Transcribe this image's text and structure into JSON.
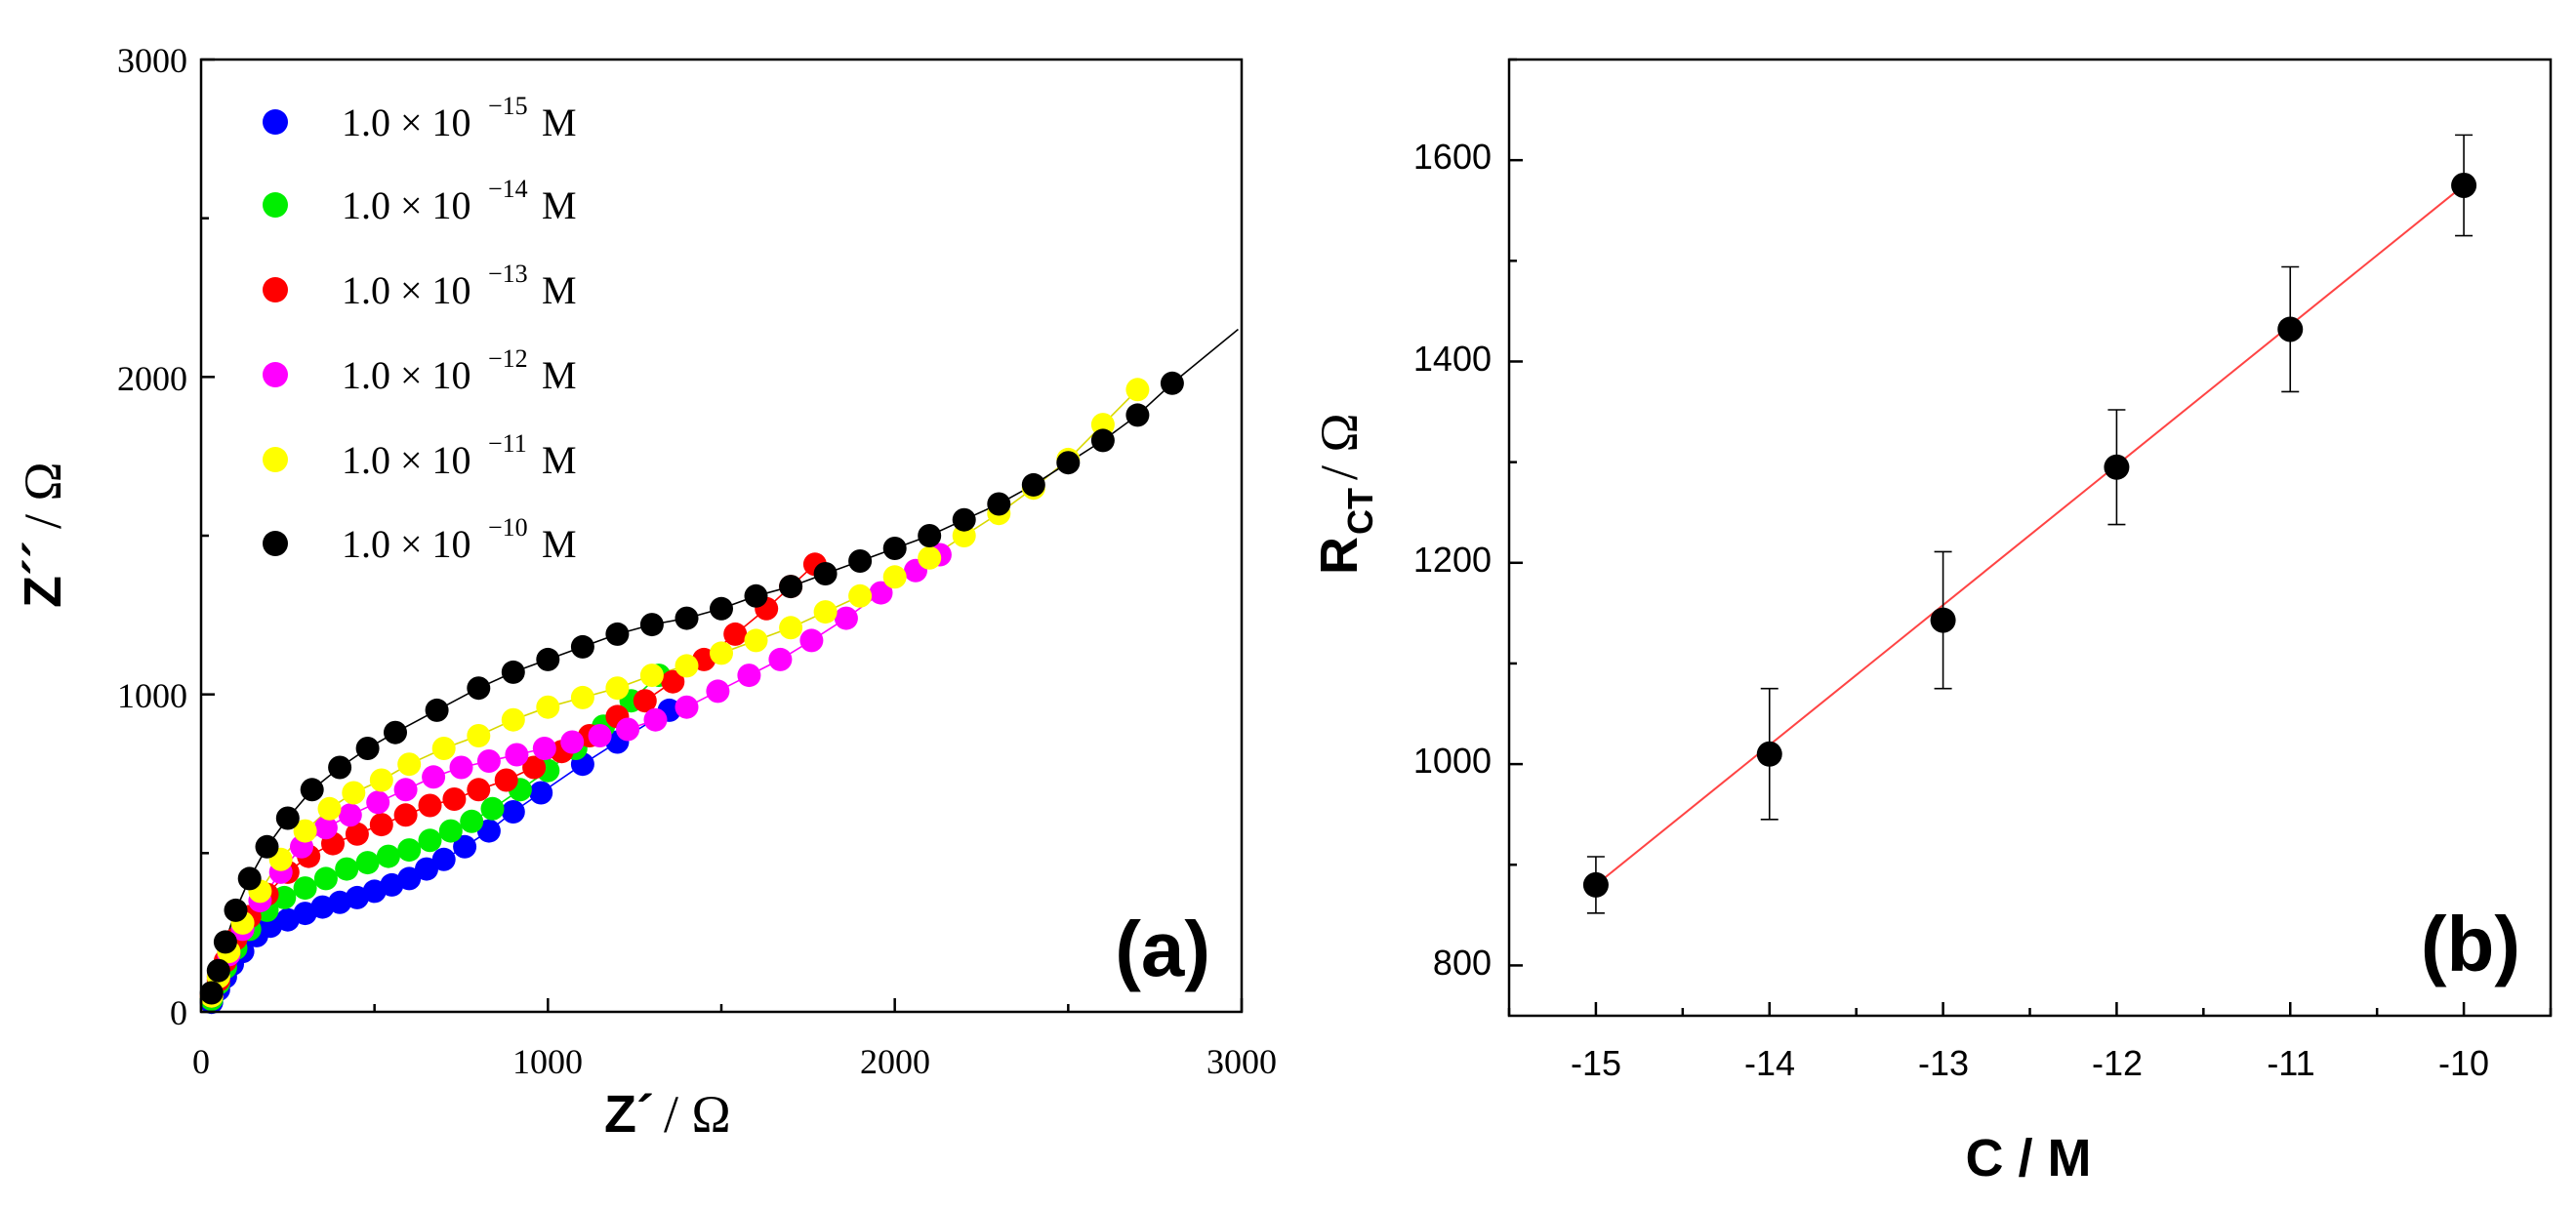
{
  "chart_data": [
    {
      "panel_label": "(a)",
      "type": "scatter",
      "xlabel_main": "Z´",
      "xlabel_unit": "/ Ω",
      "ylabel_main": "Z´´",
      "ylabel_unit": "/ Ω",
      "xlim": [
        0,
        3000
      ],
      "ylim": [
        0,
        3000
      ],
      "xticks": [
        "0",
        "1000",
        "2000",
        "3000"
      ],
      "yticks": [
        "0",
        "1000",
        "2000",
        "3000"
      ],
      "legend_position": "top-left",
      "series": [
        {
          "name": "1.0 × 10^-15 M",
          "mantissa": "1.0 × 10",
          "exponent": "−15",
          "unit": "M",
          "color": "#0000ff",
          "x": [
            30,
            50,
            70,
            90,
            120,
            160,
            200,
            250,
            300,
            350,
            400,
            450,
            500,
            550,
            600,
            650,
            700,
            760,
            830,
            900,
            980,
            1100,
            1200,
            1350
          ],
          "y": [
            30,
            70,
            110,
            150,
            190,
            240,
            270,
            290,
            310,
            330,
            345,
            360,
            380,
            400,
            420,
            450,
            480,
            520,
            570,
            630,
            690,
            780,
            850,
            950
          ]
        },
        {
          "name": "1.0 × 10^-14 M",
          "mantissa": "1.0 × 10",
          "exponent": "−14",
          "unit": "M",
          "color": "#00ee00",
          "x": [
            30,
            50,
            70,
            100,
            140,
            190,
            240,
            300,
            360,
            420,
            480,
            540,
            600,
            660,
            720,
            780,
            840,
            920,
            1000,
            1080,
            1160,
            1240,
            1320
          ],
          "y": [
            40,
            90,
            140,
            200,
            260,
            320,
            360,
            390,
            420,
            450,
            470,
            490,
            510,
            540,
            570,
            600,
            640,
            700,
            760,
            830,
            900,
            980,
            1060
          ]
        },
        {
          "name": "1.0 × 10^-13 M",
          "mantissa": "1.0 × 10",
          "exponent": "−13",
          "unit": "M",
          "color": "#ff0000",
          "x": [
            30,
            50,
            70,
            100,
            140,
            190,
            250,
            310,
            380,
            450,
            520,
            590,
            660,
            730,
            800,
            880,
            960,
            1040,
            1120,
            1200,
            1280,
            1360,
            1450,
            1540,
            1630,
            1700,
            1770
          ],
          "y": [
            50,
            100,
            160,
            230,
            300,
            370,
            440,
            490,
            530,
            560,
            590,
            620,
            650,
            670,
            700,
            730,
            770,
            820,
            870,
            930,
            980,
            1040,
            1110,
            1190,
            1270,
            1340,
            1410
          ]
        },
        {
          "name": "1.0 × 10^-12 M",
          "mantissa": "1.0 × 10",
          "exponent": "−12",
          "unit": "M",
          "color": "#ff00ff",
          "x": [
            30,
            50,
            80,
            120,
            170,
            230,
            290,
            360,
            430,
            510,
            590,
            670,
            750,
            830,
            910,
            990,
            1070,
            1150,
            1230,
            1310,
            1400,
            1490,
            1580,
            1670,
            1760,
            1860,
            1960,
            2060,
            2130
          ],
          "y": [
            50,
            110,
            180,
            260,
            350,
            440,
            520,
            580,
            620,
            660,
            700,
            740,
            770,
            790,
            810,
            830,
            850,
            870,
            890,
            920,
            960,
            1010,
            1060,
            1110,
            1170,
            1240,
            1320,
            1390,
            1440
          ]
        },
        {
          "name": "1.0 × 10^-11 M",
          "mantissa": "1.0 × 10",
          "exponent": "−11",
          "unit": "M",
          "color": "#ffff00",
          "x": [
            30,
            50,
            80,
            120,
            170,
            230,
            300,
            370,
            440,
            520,
            600,
            700,
            800,
            900,
            1000,
            1100,
            1200,
            1300,
            1400,
            1500,
            1600,
            1700,
            1800,
            1900,
            2000,
            2100,
            2200,
            2300,
            2400,
            2500,
            2600,
            2700
          ],
          "y": [
            50,
            110,
            190,
            280,
            380,
            480,
            570,
            640,
            690,
            730,
            780,
            830,
            870,
            920,
            960,
            990,
            1020,
            1060,
            1090,
            1130,
            1170,
            1210,
            1260,
            1310,
            1370,
            1430,
            1500,
            1570,
            1650,
            1740,
            1850,
            1960
          ]
        },
        {
          "name": "1.0 × 10^-10 M",
          "mantissa": "1.0 × 10",
          "exponent": "−10",
          "unit": "M",
          "color": "#000000",
          "x": [
            30,
            50,
            70,
            100,
            140,
            190,
            250,
            320,
            400,
            480,
            560,
            680,
            800,
            900,
            1000,
            1100,
            1200,
            1300,
            1400,
            1500,
            1600,
            1700,
            1800,
            1900,
            2000,
            2100,
            2200,
            2300,
            2400,
            2500,
            2600,
            2700,
            2800
          ],
          "y": [
            60,
            130,
            220,
            320,
            420,
            520,
            610,
            700,
            770,
            830,
            880,
            950,
            1020,
            1070,
            1110,
            1150,
            1190,
            1220,
            1240,
            1270,
            1310,
            1340,
            1380,
            1420,
            1460,
            1500,
            1550,
            1600,
            1660,
            1730,
            1800,
            1880,
            1980
          ]
        }
      ]
    },
    {
      "panel_label": "(b)",
      "type": "scatter",
      "xlabel": "C / M",
      "ylabel_main": "R",
      "ylabel_sub": "CT",
      "ylabel_unit": " / Ω",
      "xlim": [
        -15.5,
        -9.5
      ],
      "ylim": [
        750,
        1700
      ],
      "xticks": [
        "-15",
        "-14",
        "-13",
        "-12",
        "-11",
        "-10"
      ],
      "yticks": [
        "800",
        "1000",
        "1200",
        "1400",
        "1600"
      ],
      "x": [
        -15,
        -14,
        -13,
        -12,
        -11,
        -10
      ],
      "y": [
        880,
        1010,
        1143,
        1295,
        1432,
        1575
      ],
      "yerr": [
        28,
        65,
        68,
        57,
        62,
        50
      ],
      "fit_line": {
        "x": [
          -15,
          -10
        ],
        "y": [
          880,
          1575
        ],
        "color": "#ff4444"
      },
      "marker_color": "#000000"
    }
  ]
}
